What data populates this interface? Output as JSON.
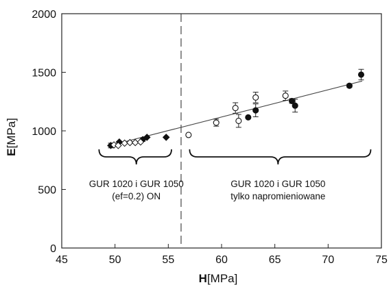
{
  "chart_data": {
    "type": "scatter",
    "xlabel": {
      "symbol": "H",
      "unit": "[MPa]"
    },
    "ylabel": {
      "symbol": "E",
      "unit": "[MPa]"
    },
    "xlim": [
      45,
      75
    ],
    "ylim": [
      0,
      2000
    ],
    "xticks": [
      "45",
      "50",
      "55",
      "60",
      "65",
      "70",
      "75"
    ],
    "yticks": [
      "0",
      "500",
      "1000",
      "1500",
      "2000"
    ],
    "grid": false,
    "divider_x": 56.2,
    "fit_line": {
      "x": [
        49.3,
        73.2
      ],
      "y": [
        870,
        1425
      ]
    },
    "series": [
      {
        "marker": "filled-diamond",
        "points": [
          {
            "x": 49.6,
            "y": 875,
            "err": 20
          },
          {
            "x": 50.4,
            "y": 905,
            "err": 0
          },
          {
            "x": 52.6,
            "y": 925,
            "err": 15
          },
          {
            "x": 53.0,
            "y": 945,
            "err": 0
          },
          {
            "x": 54.8,
            "y": 945,
            "err": 0
          }
        ]
      },
      {
        "marker": "open-diamond",
        "points": [
          {
            "x": 49.9,
            "y": 880
          },
          {
            "x": 50.3,
            "y": 875
          },
          {
            "x": 50.9,
            "y": 895
          },
          {
            "x": 51.4,
            "y": 900
          },
          {
            "x": 51.9,
            "y": 900
          },
          {
            "x": 52.4,
            "y": 905
          }
        ]
      },
      {
        "marker": "open-circle",
        "points": [
          {
            "x": 56.9,
            "y": 965,
            "err": 0
          },
          {
            "x": 59.5,
            "y": 1070,
            "err": 30
          },
          {
            "x": 61.3,
            "y": 1195,
            "err": 45
          },
          {
            "x": 61.6,
            "y": 1085,
            "err": 55
          },
          {
            "x": 63.2,
            "y": 1285,
            "err": 45
          },
          {
            "x": 66.0,
            "y": 1300,
            "err": 40
          }
        ]
      },
      {
        "marker": "filled-circle",
        "points": [
          {
            "x": 62.5,
            "y": 1115,
            "err": 0
          },
          {
            "x": 63.2,
            "y": 1175,
            "err": 55
          },
          {
            "x": 66.6,
            "y": 1255,
            "err": 20
          },
          {
            "x": 66.9,
            "y": 1215,
            "err": 55
          },
          {
            "x": 72.0,
            "y": 1385,
            "err": 15
          },
          {
            "x": 73.1,
            "y": 1480,
            "err": 45
          }
        ]
      }
    ],
    "annotations": [
      {
        "id": "left",
        "line1": "GUR 1020 i GUR 1050",
        "line2": "(ef=0.2) ON",
        "bracket_x": [
          48.5,
          55.3
        ],
        "text_x": 52.0
      },
      {
        "id": "right",
        "line1": "GUR 1020 i GUR 1050",
        "line2": "tylko napromieniowane",
        "bracket_x": [
          57.0,
          74.0
        ],
        "text_x": 65.3
      }
    ]
  }
}
